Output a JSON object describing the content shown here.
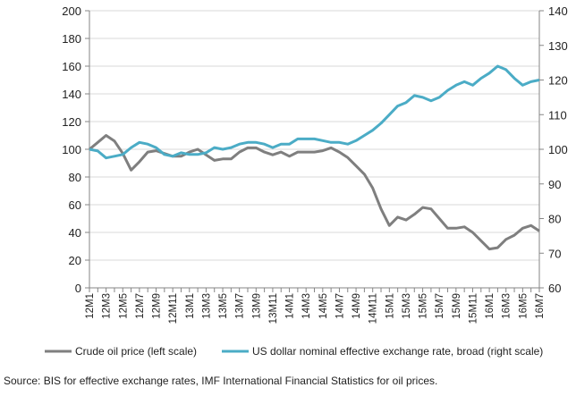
{
  "chart_data": {
    "type": "line",
    "title": "",
    "x": [
      "12M1",
      "12M2",
      "12M3",
      "12M4",
      "12M5",
      "12M6",
      "12M7",
      "12M8",
      "12M9",
      "12M10",
      "12M11",
      "12M12",
      "13M1",
      "13M2",
      "13M3",
      "13M4",
      "13M5",
      "13M6",
      "13M7",
      "13M8",
      "13M9",
      "13M10",
      "13M11",
      "13M12",
      "14M1",
      "14M2",
      "14M3",
      "14M4",
      "14M5",
      "14M6",
      "14M7",
      "14M8",
      "14M9",
      "14M10",
      "14M11",
      "14M12",
      "15M1",
      "15M2",
      "15M3",
      "15M4",
      "15M5",
      "15M6",
      "15M7",
      "15M8",
      "15M9",
      "15M10",
      "15M11",
      "15M12",
      "16M1",
      "16M2",
      "16M3",
      "16M4",
      "16M5",
      "16M6",
      "16M7"
    ],
    "x_tick_labels": [
      "12M1",
      "12M3",
      "12M5",
      "12M7",
      "12M9",
      "12M11",
      "13M1",
      "13M3",
      "13M5",
      "13M7",
      "13M9",
      "13M11",
      "14M1",
      "14M3",
      "14M5",
      "14M7",
      "14M9",
      "14M11",
      "15M1",
      "15M3",
      "15M5",
      "15M7",
      "15M9",
      "15M11",
      "16M1",
      "16M3",
      "16M5",
      "16M7"
    ],
    "y_left": {
      "range": [
        0,
        200
      ],
      "ticks": [
        "0",
        "20",
        "40",
        "60",
        "80",
        "100",
        "120",
        "140",
        "160",
        "180",
        "200"
      ]
    },
    "y_right": {
      "range": [
        60,
        140
      ],
      "ticks": [
        "60",
        "70",
        "80",
        "90",
        "100",
        "110",
        "120",
        "130",
        "140"
      ]
    },
    "grid": true,
    "legend_position": "bottom",
    "series": [
      {
        "name": "Crude oil price (left scale)",
        "axis": "left",
        "color": "#7f7f7f",
        "values": [
          100,
          105,
          110,
          106,
          97,
          85,
          91,
          98,
          99,
          97,
          95,
          95,
          98,
          100,
          96,
          92,
          93,
          93,
          98,
          101,
          101,
          98,
          96,
          98,
          95,
          98,
          98,
          98,
          99,
          101,
          98,
          94,
          88,
          82,
          72,
          57,
          45,
          51,
          49,
          53,
          58,
          57,
          50,
          43,
          43,
          44,
          40,
          34,
          28,
          29,
          35,
          38,
          43,
          45,
          41
        ]
      },
      {
        "name": "US dollar nominal effective exchange rate, broad (right scale)",
        "axis": "right",
        "color": "#4bacc6",
        "values": [
          100,
          99.5,
          97.5,
          98,
          98.5,
          100.5,
          102,
          101.5,
          100.5,
          98.5,
          98,
          99,
          98.5,
          98.5,
          99,
          100.5,
          100,
          100.5,
          101.5,
          102,
          102,
          101.5,
          100.5,
          101.5,
          101.5,
          103,
          103,
          103,
          102.5,
          102,
          102,
          101.5,
          102.5,
          104,
          105.5,
          107.5,
          110,
          112.5,
          113.5,
          115.5,
          115,
          114,
          115,
          117,
          118.5,
          119.5,
          118.5,
          120.5,
          122,
          124,
          123,
          120.5,
          118.5,
          119.5,
          120
        ]
      }
    ],
    "source": "Source: BIS for effective exchange rates, IMF International Financial Statistics for oil prices."
  }
}
